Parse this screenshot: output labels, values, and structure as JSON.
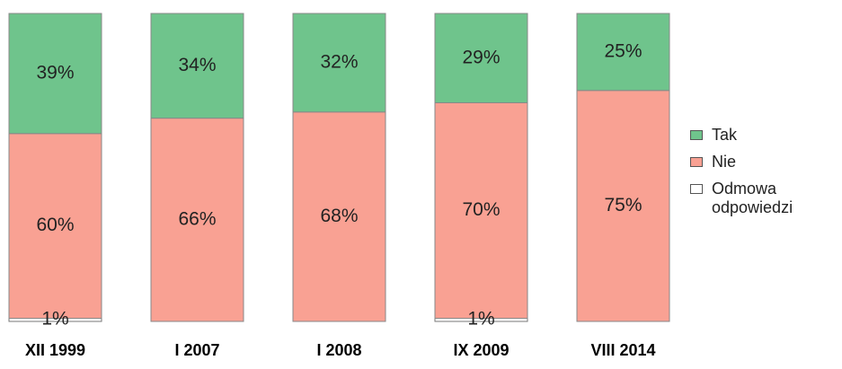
{
  "chart_data": {
    "type": "stacked_bar",
    "categories": [
      "XII 1999",
      "I 2007",
      "I 2008",
      "IX 2009",
      "VIII 2014"
    ],
    "series": [
      {
        "name": "Odmowa odpowiedzi",
        "color": "#ffffff",
        "values": [
          1,
          0,
          0,
          1,
          0
        ],
        "value_labels": [
          "1%",
          null,
          null,
          "1%",
          null
        ]
      },
      {
        "name": "Nie",
        "color": "#f9a193",
        "values": [
          60,
          66,
          68,
          70,
          75
        ],
        "value_labels": [
          "60%",
          "66%",
          "68%",
          "70%",
          "75%"
        ]
      },
      {
        "name": "Tak",
        "color": "#6fc48c",
        "values": [
          39,
          34,
          32,
          29,
          25
        ],
        "value_labels": [
          "39%",
          "34%",
          "32%",
          "29%",
          "25%"
        ]
      }
    ],
    "legend": "right"
  }
}
